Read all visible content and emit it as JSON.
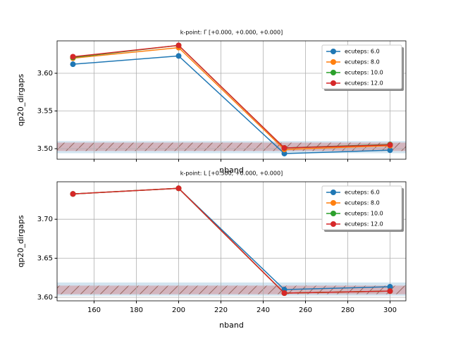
{
  "chart_data": [
    {
      "type": "line",
      "title": "k-point: Γ [+0.000, +0.000, +0.000]",
      "x_label": "nband",
      "y_label": "qp20_dirgaps",
      "x": [
        150,
        200,
        250,
        300
      ],
      "series": [
        {
          "name": "ecuteps: 6.0",
          "color": "#1f77b4",
          "values": [
            3.612,
            3.623,
            3.4935,
            3.498
          ]
        },
        {
          "name": "ecuteps: 8.0",
          "color": "#ff7f0e",
          "values": [
            3.62,
            3.634,
            3.499,
            3.504
          ]
        },
        {
          "name": "ecuteps: 10.0",
          "color": "#2ca02c",
          "values": [
            3.621,
            3.637,
            3.501,
            3.5055
          ]
        },
        {
          "name": "ecuteps: 12.0",
          "color": "#d62728",
          "values": [
            3.622,
            3.637,
            3.501,
            3.505
          ]
        }
      ],
      "bands": [
        {
          "color": "#1f77b4",
          "ymin": 3.494,
          "ymax": 3.51
        },
        {
          "color": "#d62728",
          "ymin": 3.497,
          "ymax": 3.508
        }
      ],
      "xlim": [
        142.5,
        307.5
      ],
      "xticks": [
        160,
        180,
        200,
        220,
        240,
        260,
        280,
        300
      ],
      "ylim": [
        3.486,
        3.643
      ],
      "yticks": [
        {
          "value": 3.5,
          "label": "3.50"
        },
        3.55,
        {
          "value": 3.6,
          "label": "3.60"
        }
      ],
      "grid": true,
      "legend": "upper right"
    },
    {
      "type": "line",
      "title": "k-point: L [+0.500, +0.000, +0.000]",
      "x_label": "nband",
      "y_label": "qp20_dirgaps",
      "x": [
        150,
        200,
        250,
        300
      ],
      "series": [
        {
          "name": "ecuteps: 6.0",
          "color": "#1f77b4",
          "values": [
            3.7324,
            3.7396,
            3.6099,
            3.6135
          ]
        },
        {
          "name": "ecuteps: 8.0",
          "color": "#ff7f0e",
          "values": [
            3.7324,
            3.7396,
            3.6054,
            3.608
          ]
        },
        {
          "name": "ecuteps: 10.0",
          "color": "#2ca02c",
          "values": [
            3.7324,
            3.7396,
            3.6054,
            3.608
          ]
        },
        {
          "name": "ecuteps: 12.0",
          "color": "#d62728",
          "values": [
            3.7324,
            3.7396,
            3.6054,
            3.608
          ]
        }
      ],
      "bands": [
        {
          "color": "#1f77b4",
          "ymin": 3.602,
          "ymax": 3.619
        },
        {
          "color": "#d62728",
          "ymin": 3.604,
          "ymax": 3.615
        }
      ],
      "xlim": [
        142.5,
        307.5
      ],
      "xticks": [
        160,
        180,
        200,
        220,
        240,
        260,
        280,
        300
      ],
      "ylim": [
        3.5955,
        3.748
      ],
      "yticks": [
        {
          "value": 3.6,
          "label": "3.60"
        },
        3.65,
        {
          "value": 3.7,
          "label": "3.70"
        }
      ],
      "grid": true,
      "legend": "upper right"
    }
  ]
}
